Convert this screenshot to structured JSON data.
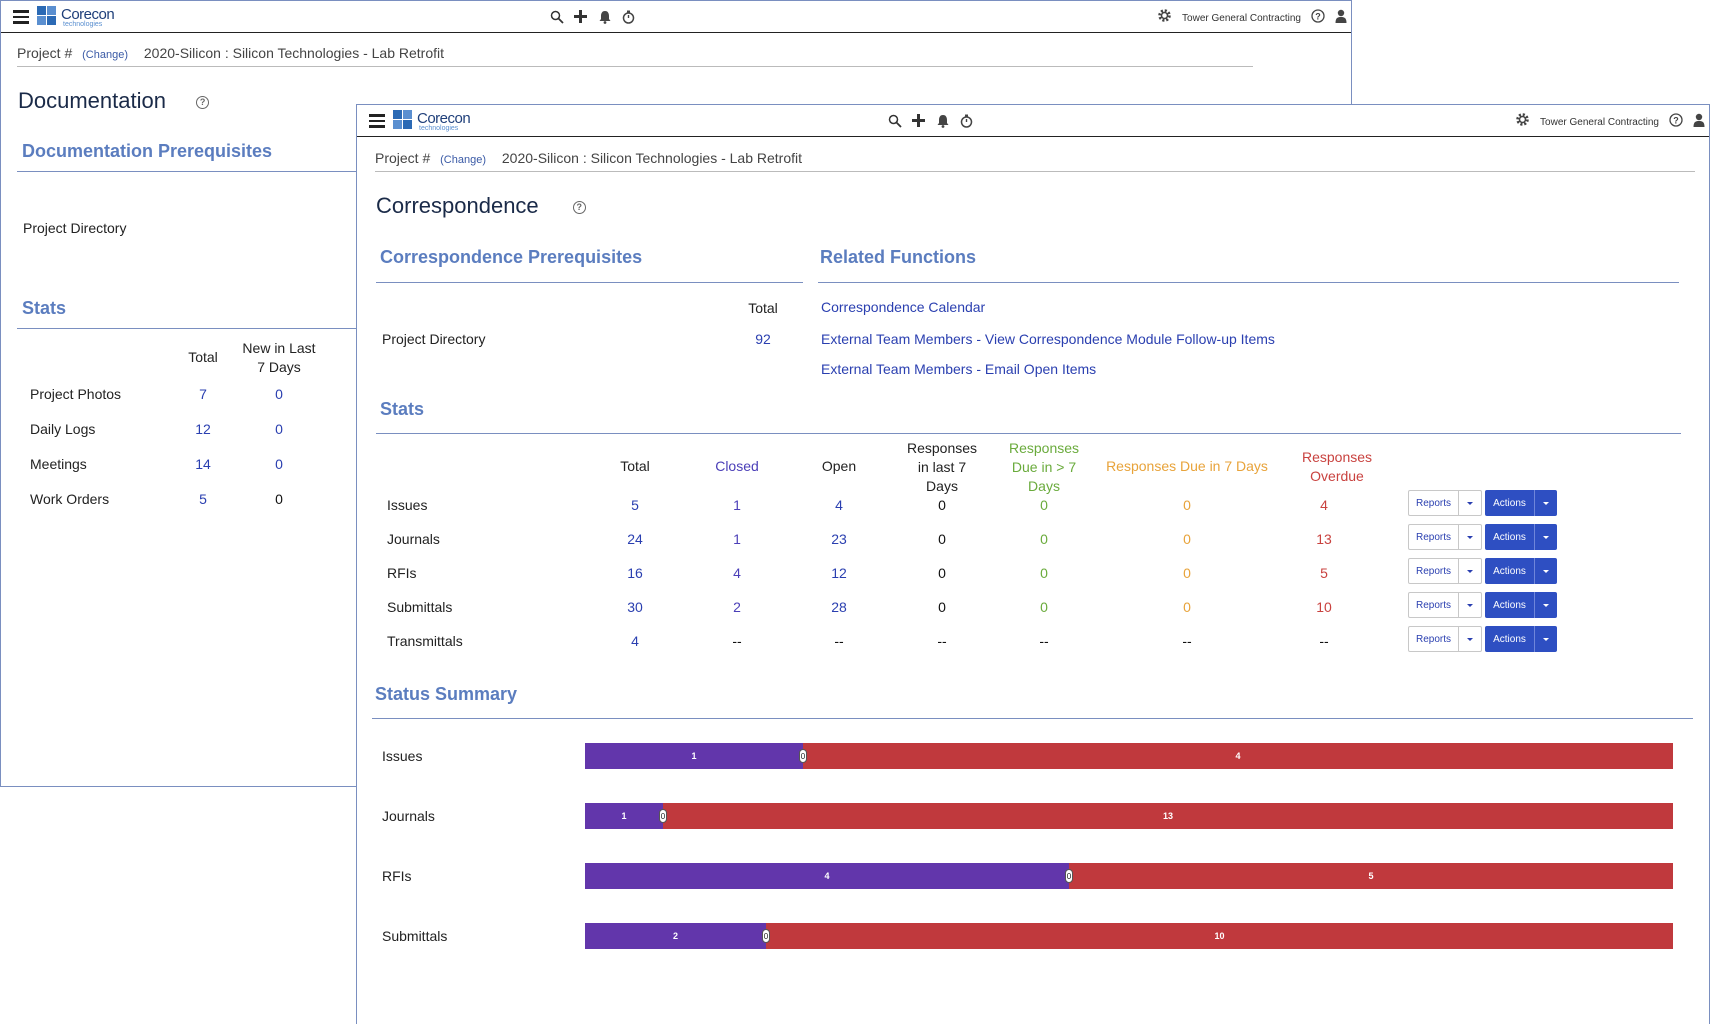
{
  "app": {
    "logo_name": "Corecon",
    "logo_sub": "technologies",
    "company": "Tower General Contracting"
  },
  "breadcrumb": {
    "label": "Project #",
    "change": "(Change)",
    "project": "2020-Silicon : Silicon Technologies - Lab Retrofit"
  },
  "back_window": {
    "title": "Documentation",
    "prereq_title": "Documentation Prerequisites",
    "prereq_item": "Project Directory",
    "stats_title": "Stats",
    "stats_headers": {
      "total": "Total",
      "new_line1": "New in Last",
      "new_line2": "7 Days"
    },
    "stats_rows": [
      {
        "label": "Project Photos",
        "total": "7",
        "new": "0"
      },
      {
        "label": "Daily Logs",
        "total": "12",
        "new": "0"
      },
      {
        "label": "Meetings",
        "total": "14",
        "new": "0"
      },
      {
        "label": "Work Orders",
        "total": "5",
        "new": "0"
      }
    ]
  },
  "front_window": {
    "title": "Correspondence",
    "prereq_title": "Correspondence Prerequisites",
    "prereq_total_header": "Total",
    "prereq_item": "Project Directory",
    "prereq_total": "92",
    "related_title": "Related Functions",
    "related_links": [
      "Correspondence Calendar",
      "External Team Members - View Correspondence Module Follow-up Items",
      "External Team Members - Email Open Items"
    ],
    "stats_title": "Stats",
    "stats_headers": {
      "total": "Total",
      "closed": "Closed",
      "open": "Open",
      "resp_last_1": "Responses",
      "resp_last_2": "in last 7",
      "resp_last_3": "Days",
      "due_gt_1": "Responses",
      "due_gt_2": "Due in > 7",
      "due_gt_3": "Days",
      "due_7": "Responses Due in 7 Days",
      "overdue_1": "Responses",
      "overdue_2": "Overdue"
    },
    "stats_rows": [
      {
        "label": "Issues",
        "total": "5",
        "closed": "1",
        "open": "4",
        "resp_last": "0",
        "due_gt": "0",
        "due_7": "0",
        "overdue": "4"
      },
      {
        "label": "Journals",
        "total": "24",
        "closed": "1",
        "open": "23",
        "resp_last": "0",
        "due_gt": "0",
        "due_7": "0",
        "overdue": "13"
      },
      {
        "label": "RFIs",
        "total": "16",
        "closed": "4",
        "open": "12",
        "resp_last": "0",
        "due_gt": "0",
        "due_7": "0",
        "overdue": "5"
      },
      {
        "label": "Submittals",
        "total": "30",
        "closed": "2",
        "open": "28",
        "resp_last": "0",
        "due_gt": "0",
        "due_7": "0",
        "overdue": "10"
      },
      {
        "label": "Transmittals",
        "total": "4",
        "closed": "--",
        "open": "--",
        "resp_last": "--",
        "due_gt": "--",
        "due_7": "--",
        "overdue": "--"
      }
    ],
    "reports_label": "Reports",
    "actions_label": "Actions",
    "status_title": "Status Summary",
    "status_rows": [
      {
        "label": "Issues",
        "a": 1,
        "zero": "0",
        "b": 4
      },
      {
        "label": "Journals",
        "a": 1,
        "zero": "0",
        "b": 13
      },
      {
        "label": "RFIs",
        "a": 4,
        "zero": "0",
        "b": 5
      },
      {
        "label": "Submittals",
        "a": 2,
        "zero": "0",
        "b": 10
      }
    ]
  },
  "colors": {
    "accent": "#5b7dbf",
    "link": "#2a3fb0",
    "actions_button": "#2e4fc2",
    "bar_purple": "#6236ab",
    "bar_red": "#c0393d"
  }
}
